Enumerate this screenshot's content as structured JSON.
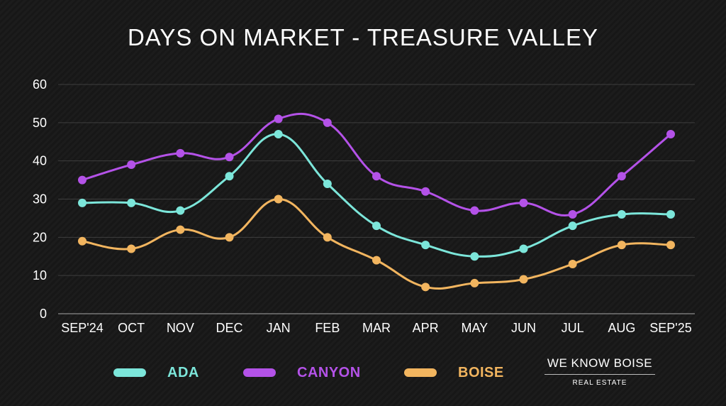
{
  "chart_data": {
    "type": "line",
    "title": "DAYS ON MARKET - TREASURE VALLEY",
    "xlabel": "",
    "ylabel": "",
    "ylim": [
      0,
      60
    ],
    "yticks": [
      "0",
      "10",
      "20",
      "30",
      "40",
      "50",
      "60"
    ],
    "grid": true,
    "legend_position": "bottom",
    "categories": [
      "SEP'24",
      "OCT",
      "NOV",
      "DEC",
      "JAN",
      "FEB",
      "MAR",
      "APR",
      "MAY",
      "JUN",
      "JUL",
      "AUG",
      "SEP'25"
    ],
    "series": [
      {
        "name": "ADA",
        "color": "#7ce6da",
        "values": [
          29,
          29,
          27,
          36,
          47,
          34,
          23,
          18,
          15,
          17,
          23,
          26,
          26
        ]
      },
      {
        "name": "CANYON",
        "color": "#b452e8",
        "values": [
          35,
          39,
          42,
          41,
          51,
          50,
          36,
          32,
          27,
          29,
          26,
          36,
          47
        ]
      },
      {
        "name": "BOISE",
        "color": "#f2b55f",
        "values": [
          19,
          17,
          22,
          20,
          30,
          20,
          14,
          7,
          8,
          9,
          13,
          18,
          18
        ]
      }
    ]
  },
  "logo": {
    "main": "WE KNOW BOISE",
    "sub": "REAL ESTATE"
  }
}
